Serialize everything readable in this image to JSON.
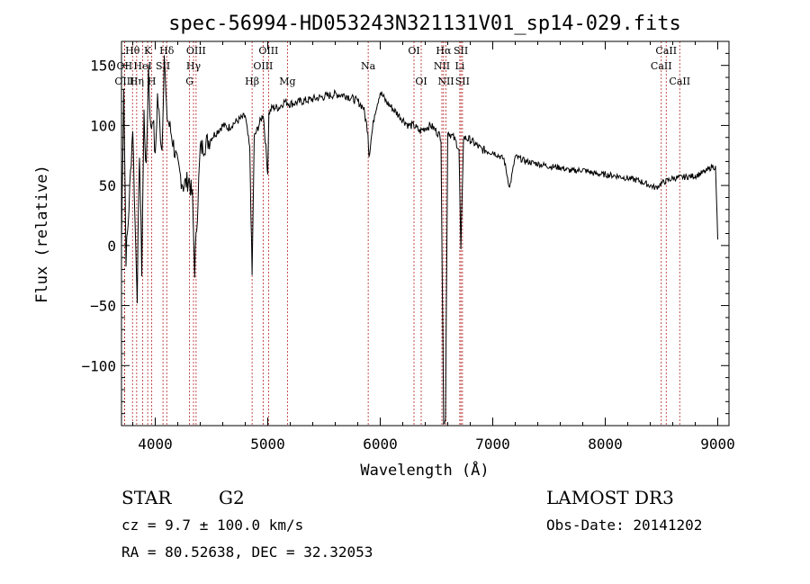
{
  "chart_data": {
    "type": "line",
    "title": "spec-56994-HD053243N321131V01_sp14-029.fits",
    "xlabel": "Wavelength (Å)",
    "ylabel": "Flux (relative)",
    "xlim": [
      3700,
      9100
    ],
    "ylim": [
      -150,
      170
    ],
    "xticks": [
      4000,
      5000,
      6000,
      7000,
      8000,
      9000
    ],
    "yticks": [
      -100,
      -50,
      0,
      50,
      100,
      150
    ],
    "xtick_labels": [
      "4000",
      "5000",
      "6000",
      "7000",
      "8000",
      "9000"
    ],
    "ytick_labels": [
      "−100",
      "−50",
      "0",
      "50",
      "100",
      "150"
    ],
    "line_color": "#000000",
    "marker_color": "#b22222",
    "series": [
      {
        "name": "flux",
        "x": [
          3700,
          3720,
          3740,
          3760,
          3780,
          3800,
          3820,
          3840,
          3860,
          3880,
          3900,
          3920,
          3940,
          3960,
          3980,
          4000,
          4020,
          4040,
          4060,
          4080,
          4100,
          4150,
          4200,
          4250,
          4300,
          4330,
          4350,
          4380,
          4400,
          4450,
          4500,
          4550,
          4600,
          4650,
          4700,
          4750,
          4800,
          4840,
          4861,
          4880,
          4920,
          4960,
          5000,
          5010,
          5040,
          5100,
          5150,
          5200,
          5300,
          5400,
          5500,
          5600,
          5700,
          5800,
          5850,
          5890,
          5900,
          5950,
          6000,
          6050,
          6100,
          6150,
          6200,
          6250,
          6300,
          6350,
          6400,
          6450,
          6500,
          6540,
          6563,
          6580,
          6600,
          6650,
          6680,
          6700,
          6717,
          6740,
          6800,
          6900,
          7000,
          7100,
          7150,
          7200,
          7300,
          7400,
          7500,
          7600,
          7700,
          7800,
          7900,
          8000,
          8100,
          8200,
          8300,
          8400,
          8450,
          8500,
          8600,
          8700,
          8800,
          8900,
          8950,
          8980,
          9000
        ],
        "y": [
          2,
          135,
          -10,
          20,
          60,
          100,
          20,
          -40,
          80,
          -20,
          110,
          60,
          150,
          95,
          110,
          70,
          125,
          100,
          80,
          160,
          110,
          90,
          65,
          50,
          55,
          40,
          -20,
          40,
          80,
          85,
          90,
          95,
          100,
          98,
          102,
          105,
          108,
          80,
          -25,
          90,
          100,
          110,
          60,
          110,
          115,
          115,
          120,
          118,
          120,
          122,
          124,
          126,
          125,
          120,
          115,
          95,
          75,
          110,
          128,
          120,
          115,
          110,
          105,
          100,
          100,
          95,
          98,
          100,
          95,
          90,
          -145,
          -145,
          95,
          90,
          85,
          80,
          -5,
          90,
          88,
          80,
          78,
          72,
          48,
          74,
          70,
          68,
          66,
          65,
          62,
          63,
          60,
          59,
          58,
          56,
          54,
          50,
          48,
          52,
          56,
          57,
          58,
          62,
          66,
          65,
          5
        ]
      }
    ],
    "emission_lines": [
      {
        "label": "Hθ",
        "wavelength": 3798,
        "row": 1
      },
      {
        "label": "OII",
        "wavelength": 3727,
        "row": 2
      },
      {
        "label": "OIII",
        "wavelength": 3727,
        "row": 3
      },
      {
        "label": "K",
        "wavelength": 3933,
        "row": 1
      },
      {
        "label": "HeI",
        "wavelength": 3889,
        "row": 2
      },
      {
        "label": "Hη",
        "wavelength": 3835,
        "row": 3
      },
      {
        "label": "SII",
        "wavelength": 4069,
        "row": 2
      },
      {
        "label": "H",
        "wavelength": 3969,
        "row": 3
      },
      {
        "label": "Hδ",
        "wavelength": 4102,
        "row": 1
      },
      {
        "label": "OIII",
        "wavelength": 4363,
        "row": 1
      },
      {
        "label": "Hγ",
        "wavelength": 4340,
        "row": 2
      },
      {
        "label": "G",
        "wavelength": 4305,
        "row": 3
      },
      {
        "label": "OIII",
        "wavelength": 5007,
        "row": 1
      },
      {
        "label": "OIII",
        "wavelength": 4959,
        "row": 2
      },
      {
        "label": "Hβ",
        "wavelength": 4861,
        "row": 3
      },
      {
        "label": "Mg",
        "wavelength": 5175,
        "row": 3
      },
      {
        "label": "Na",
        "wavelength": 5893,
        "row": 2
      },
      {
        "label": "OI",
        "wavelength": 6300,
        "row": 1
      },
      {
        "label": "OI",
        "wavelength": 6364,
        "row": 3
      },
      {
        "label": "Hα",
        "wavelength": 6563,
        "row": 1
      },
      {
        "label": "NII",
        "wavelength": 6548,
        "row": 2
      },
      {
        "label": "NII",
        "wavelength": 6584,
        "row": 3
      },
      {
        "label": "SII",
        "wavelength": 6717,
        "row": 1
      },
      {
        "label": "Li",
        "wavelength": 6707,
        "row": 2
      },
      {
        "label": "SII",
        "wavelength": 6731,
        "row": 3
      },
      {
        "label": "CaII",
        "wavelength": 8542,
        "row": 1
      },
      {
        "label": "CaII",
        "wavelength": 8498,
        "row": 2
      },
      {
        "label": "CaII",
        "wavelength": 8662,
        "row": 3
      }
    ]
  },
  "info": {
    "object_type": "STAR",
    "subclass": "G2",
    "cz": "cz = 9.7 ± 100.0 km/s",
    "coords": "RA =  80.52638, DEC =  32.32053",
    "survey": "LAMOST DR3",
    "obs_date": "Obs-Date: 20141202"
  }
}
